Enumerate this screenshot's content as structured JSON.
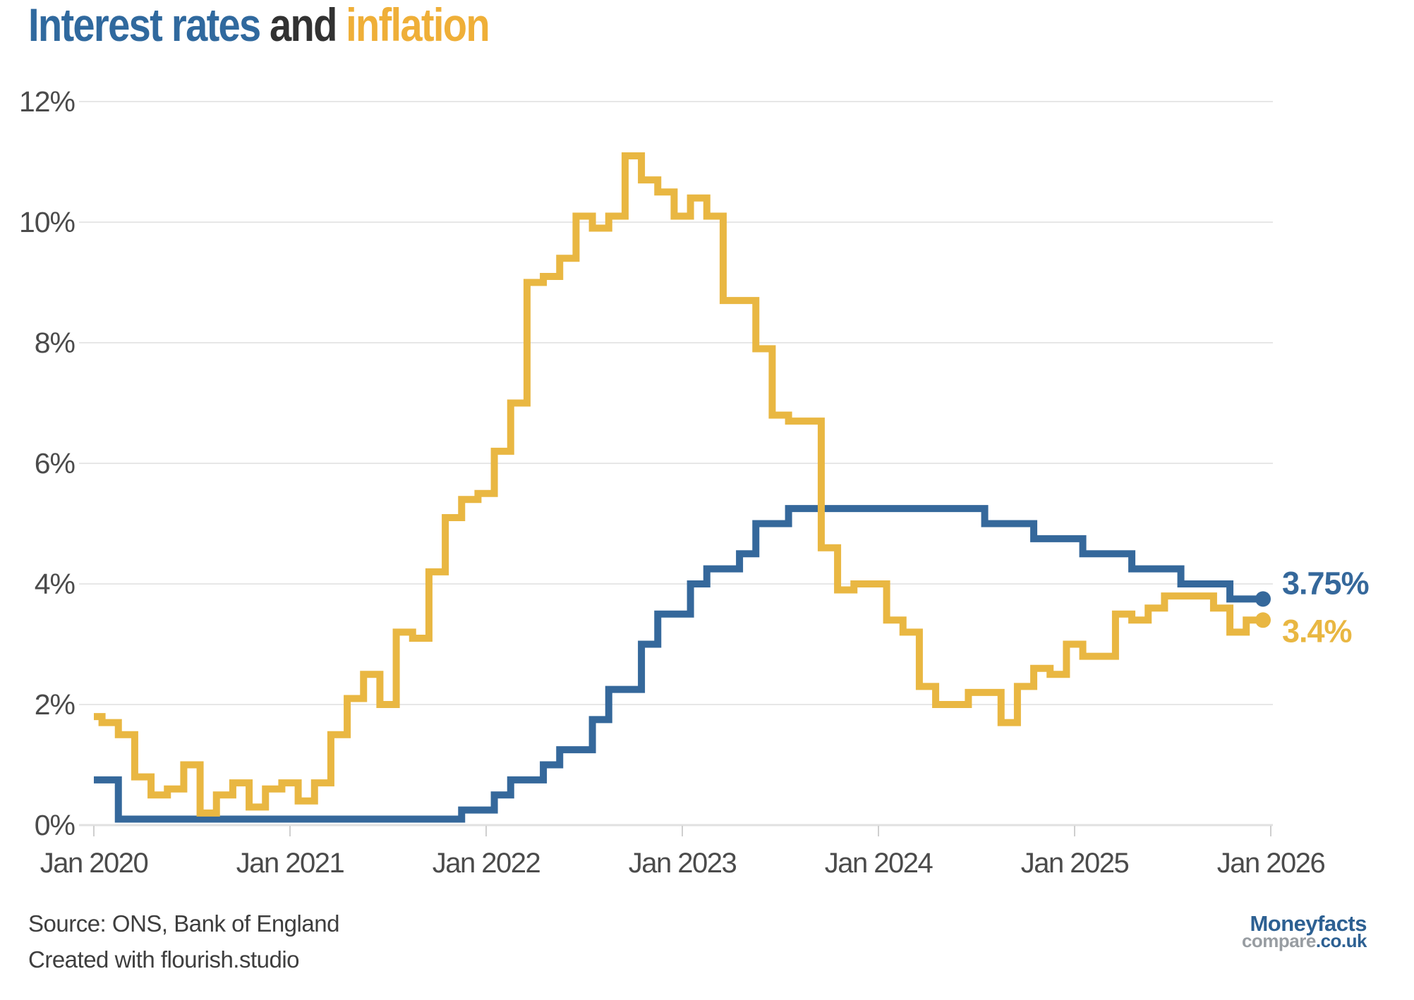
{
  "title": {
    "part1": "Interest rates",
    "part2": "and",
    "part3": "inflation"
  },
  "footer": {
    "source": "Source: ONS, Bank of England",
    "credit": "Created with flourish.studio"
  },
  "logo": {
    "line1": "Moneyfacts",
    "compare": "compare",
    "couk": ".co.uk"
  },
  "colors": {
    "title_blue": "#30699E",
    "title_dark": "#323232",
    "title_yellow": "#EFAF38",
    "line_blue": "#35689B",
    "line_yellow": "#E9B742",
    "grid": "#e7e7e7",
    "zero_line": "#e0e0e0",
    "tick": "#cfcfcf",
    "axis_text": "#4b4b4b",
    "logo_blue": "#2d6092",
    "logo_gray": "#989da2"
  },
  "chart_data": {
    "type": "line",
    "step": true,
    "title": "Interest rates and inflation",
    "xlabel": "",
    "ylabel": "",
    "x_start": "Jan 2020",
    "x_end": "Dec 2025",
    "frequency": "monthly",
    "ylim": [
      0,
      12
    ],
    "grid": "horizontal",
    "legend_position": "in-title",
    "y_ticks": [
      {
        "value": 0,
        "label": "0%"
      },
      {
        "value": 2,
        "label": "2%"
      },
      {
        "value": 4,
        "label": "4%"
      },
      {
        "value": 6,
        "label": "6%"
      },
      {
        "value": 8,
        "label": "8%"
      },
      {
        "value": 10,
        "label": "10%"
      },
      {
        "value": 12,
        "label": "12%"
      }
    ],
    "x_ticks": [
      {
        "label": "Jan 2020"
      },
      {
        "label": "Jan 2021"
      },
      {
        "label": "Jan 2022"
      },
      {
        "label": "Jan 2023"
      },
      {
        "label": "Jan 2024"
      },
      {
        "label": "Jan 2025"
      },
      {
        "label": "Jan 2026"
      }
    ],
    "series": [
      {
        "name": "Interest rates",
        "color": "#35689B",
        "end_label": "3.75%",
        "values": [
          0.75,
          0.75,
          0.1,
          0.1,
          0.1,
          0.1,
          0.1,
          0.1,
          0.1,
          0.1,
          0.1,
          0.1,
          0.1,
          0.1,
          0.1,
          0.1,
          0.1,
          0.1,
          0.1,
          0.1,
          0.1,
          0.1,
          0.1,
          0.25,
          0.25,
          0.5,
          0.75,
          0.75,
          1.0,
          1.25,
          1.25,
          1.75,
          2.25,
          2.25,
          3.0,
          3.5,
          3.5,
          4.0,
          4.25,
          4.25,
          4.5,
          5.0,
          5.0,
          5.25,
          5.25,
          5.25,
          5.25,
          5.25,
          5.25,
          5.25,
          5.25,
          5.25,
          5.25,
          5.25,
          5.25,
          5.0,
          5.0,
          5.0,
          4.75,
          4.75,
          4.75,
          4.5,
          4.5,
          4.5,
          4.25,
          4.25,
          4.25,
          4.0,
          4.0,
          4.0,
          3.75,
          3.75
        ]
      },
      {
        "name": "Inflation",
        "color": "#E9B742",
        "end_label": "3.4%",
        "values": [
          1.8,
          1.7,
          1.5,
          0.8,
          0.5,
          0.6,
          1.0,
          0.2,
          0.5,
          0.7,
          0.3,
          0.6,
          0.7,
          0.4,
          0.7,
          1.5,
          2.1,
          2.5,
          2.0,
          3.2,
          3.1,
          4.2,
          5.1,
          5.4,
          5.5,
          6.2,
          7.0,
          9.0,
          9.1,
          9.4,
          10.1,
          9.9,
          10.1,
          11.1,
          10.7,
          10.5,
          10.1,
          10.4,
          10.1,
          8.7,
          8.7,
          7.9,
          6.8,
          6.7,
          6.7,
          4.6,
          3.9,
          4.0,
          4.0,
          3.4,
          3.2,
          2.3,
          2.0,
          2.0,
          2.2,
          2.2,
          1.7,
          2.3,
          2.6,
          2.5,
          3.0,
          2.8,
          2.8,
          3.5,
          3.4,
          3.6,
          3.8,
          3.8,
          3.8,
          3.6,
          3.2,
          3.4
        ]
      }
    ]
  }
}
